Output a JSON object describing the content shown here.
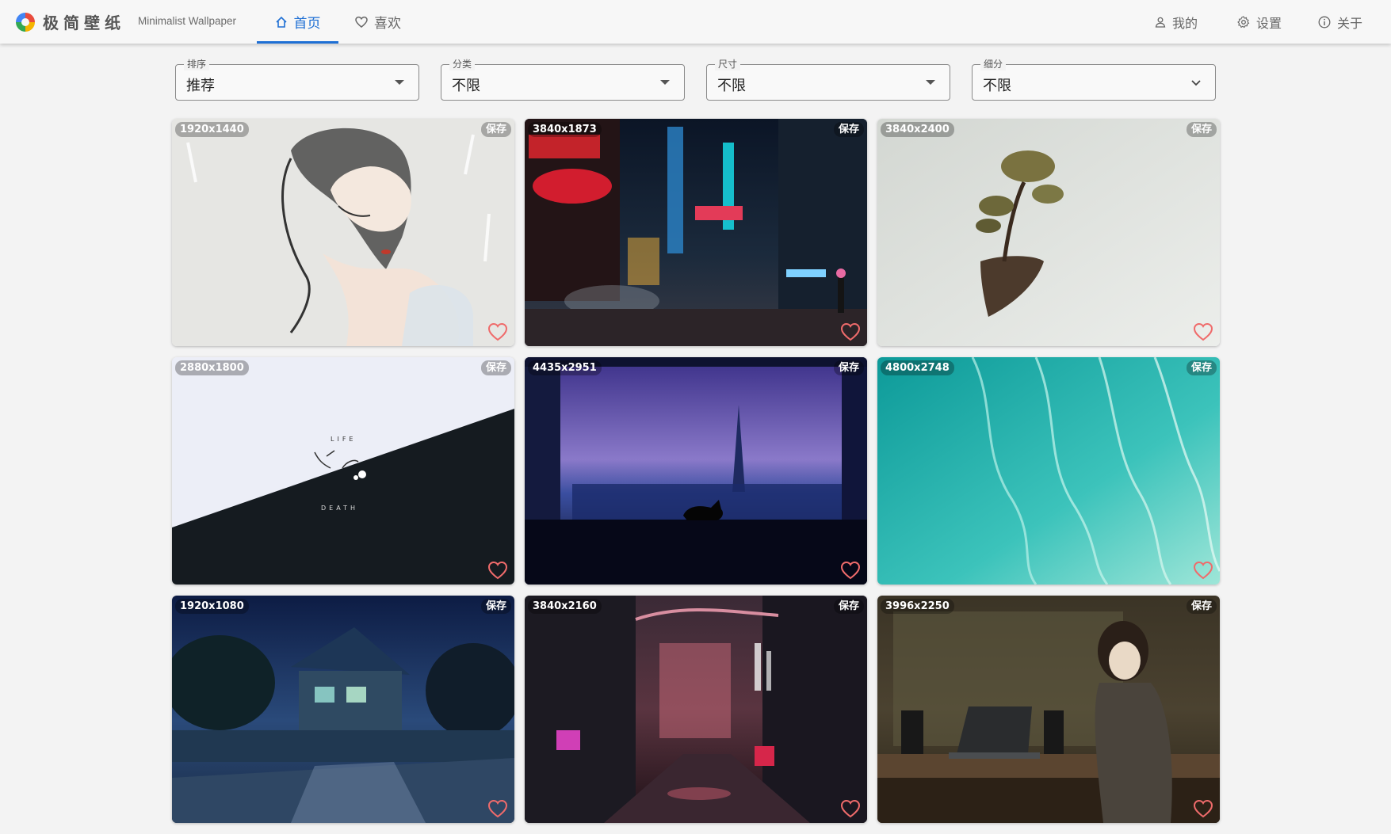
{
  "header": {
    "app_title": "极简壁纸",
    "app_subtitle": "Minimalist Wallpaper",
    "tabs": [
      {
        "label": "首页",
        "icon": "home-icon",
        "active": true
      },
      {
        "label": "喜欢",
        "icon": "heart-outline-icon",
        "active": false
      }
    ],
    "right_items": [
      {
        "label": "我的",
        "icon": "user-icon"
      },
      {
        "label": "设置",
        "icon": "gear-icon"
      },
      {
        "label": "关于",
        "icon": "info-icon"
      }
    ],
    "accent_color": "#1e6fd4"
  },
  "filters": [
    {
      "label": "排序",
      "value": "推荐"
    },
    {
      "label": "分类",
      "value": "不限"
    },
    {
      "label": "尺寸",
      "value": "不限"
    },
    {
      "label": "细分",
      "value": "不限"
    }
  ],
  "save_label": "保存",
  "wallpapers": [
    {
      "size": "1920x1440",
      "subject": "ink-painting-girl"
    },
    {
      "size": "3840x1873",
      "subject": "neon-city-street"
    },
    {
      "size": "3840x2400",
      "subject": "floating-island-tree"
    },
    {
      "size": "2880x1800",
      "subject": "life-death-diagonal",
      "text_top": "LIFE",
      "text_bottom": "DEATH"
    },
    {
      "size": "4435x2951",
      "subject": "cat-window-eiffel"
    },
    {
      "size": "4800x2748",
      "subject": "turquoise-waves"
    },
    {
      "size": "1920x1080",
      "subject": "night-village-street"
    },
    {
      "size": "3840x2160",
      "subject": "rainy-neon-alley"
    },
    {
      "size": "3996x2250",
      "subject": "girl-laptop-room"
    }
  ]
}
